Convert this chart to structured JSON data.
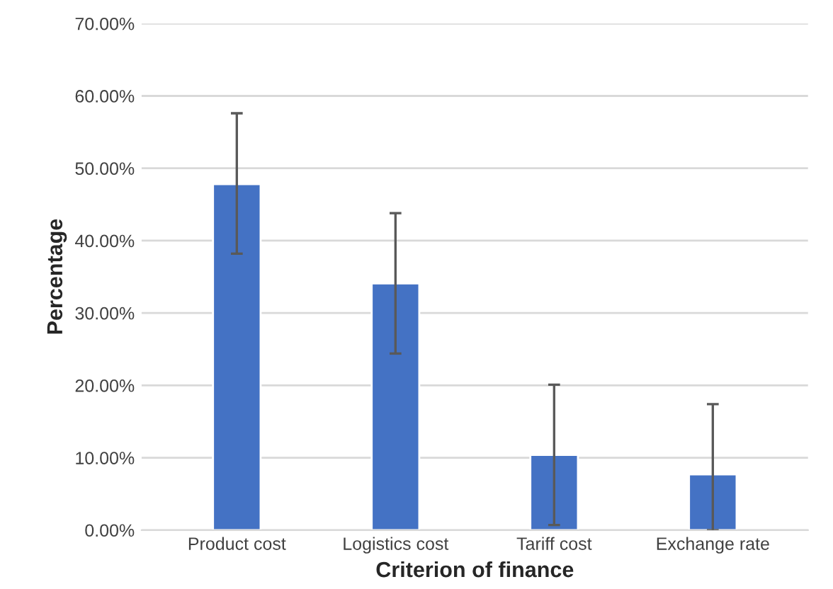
{
  "chart_data": {
    "type": "bar",
    "xlabel": "Criterion of finance",
    "ylabel": "Percentage",
    "categories": [
      "Product cost",
      "Logistics cost",
      "Tariff cost",
      "Exchange rate"
    ],
    "values": [
      47.8,
      34.1,
      10.4,
      7.7
    ],
    "errors": [
      [
        38.2,
        57.6
      ],
      [
        24.4,
        43.8
      ],
      [
        0.7,
        20.1
      ],
      [
        0.0,
        17.4
      ]
    ],
    "color": "#4472c4",
    "ylim": [
      0,
      70
    ],
    "yticks": [
      {
        "value": 0,
        "label": "0.00%"
      },
      {
        "value": 10,
        "label": "10.00%"
      },
      {
        "value": 20,
        "label": "20.00%"
      },
      {
        "value": 30,
        "label": "30.00%"
      },
      {
        "value": 40,
        "label": "40.00%"
      },
      {
        "value": 50,
        "label": "50.00%"
      },
      {
        "value": 60,
        "label": "60.00%"
      },
      {
        "value": 70,
        "label": "70.00%"
      }
    ],
    "grid": "y"
  }
}
